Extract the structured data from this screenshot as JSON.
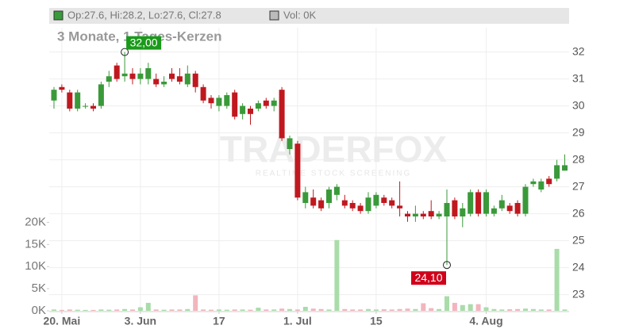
{
  "chart_data": {
    "type": "candlestick",
    "header": "Op:27.6, Hi:28.2, Lo:27.6, Cl:27.8",
    "volume_header": "Vol: 0K",
    "title": "3 Monate, 1 Tages-Kerzen",
    "watermark": "TRADERFOX",
    "watermark_sub": "REALTIME STOCK SCREENING",
    "categories": [
      null,
      "20. Mai",
      null,
      null,
      null,
      null,
      null,
      null,
      null,
      null,
      null,
      "3. Jun",
      null,
      null,
      null,
      null,
      null,
      null,
      null,
      null,
      null,
      "17",
      null,
      null,
      null,
      null,
      null,
      null,
      null,
      null,
      null,
      "1. Jul",
      null,
      null,
      null,
      null,
      null,
      null,
      null,
      null,
      null,
      "15",
      null,
      null,
      null,
      null,
      null,
      null,
      null,
      null,
      null,
      null,
      null,
      null,
      null,
      "4. Aug",
      null,
      null,
      null,
      null,
      null,
      null,
      null,
      null,
      null,
      null
    ],
    "open": [
      30.2,
      30.7,
      30.5,
      29.9,
      30.0,
      30.0,
      30.0,
      30.9,
      31.5,
      31.1,
      31.2,
      31.0,
      31.0,
      31.0,
      30.8,
      31.2,
      31.1,
      30.8,
      31.2,
      30.7,
      30.3,
      30.0,
      30.0,
      30.5,
      29.7,
      29.9,
      29.9,
      30.2,
      30.0,
      30.6,
      28.4,
      28.6,
      26.4,
      26.6,
      26.5,
      26.4,
      26.7,
      26.5,
      26.4,
      26.3,
      26.1,
      26.3,
      26.6,
      26.5,
      26.3,
      26.0,
      25.9,
      26.0,
      26.1,
      25.9,
      25.9,
      26.5,
      25.9,
      26.0,
      26.8,
      26.0,
      26.0,
      26.2,
      26.3,
      26.4,
      26.0,
      27.1,
      26.9,
      27.3,
      27.3,
      27.6
    ],
    "high": [
      30.7,
      30.8,
      30.6,
      30.6,
      30.1,
      30.1,
      30.9,
      31.3,
      31.6,
      32.0,
      31.4,
      31.4,
      31.6,
      31.2,
      31.1,
      31.4,
      31.4,
      31.5,
      31.3,
      30.8,
      30.4,
      30.4,
      30.5,
      30.6,
      30.1,
      30.0,
      30.2,
      30.3,
      30.3,
      30.7,
      28.9,
      28.7,
      27.0,
      26.9,
      26.6,
      27.0,
      27.1,
      26.7,
      26.5,
      26.4,
      26.8,
      26.8,
      26.7,
      26.6,
      27.2,
      26.1,
      26.3,
      26.1,
      26.5,
      26.1,
      26.9,
      26.6,
      26.4,
      26.9,
      26.9,
      26.9,
      26.3,
      26.7,
      26.4,
      26.5,
      27.1,
      27.3,
      27.3,
      27.4,
      28.0,
      28.2
    ],
    "low": [
      29.9,
      30.5,
      29.8,
      29.8,
      29.9,
      29.8,
      29.9,
      30.7,
      30.9,
      30.9,
      30.8,
      30.8,
      30.8,
      30.7,
      30.7,
      30.9,
      30.8,
      30.7,
      30.5,
      30.1,
      29.9,
      29.8,
      29.9,
      29.5,
      29.5,
      29.3,
      29.8,
      29.9,
      29.8,
      28.7,
      28.2,
      26.5,
      26.2,
      26.2,
      26.1,
      26.2,
      26.5,
      26.2,
      26.1,
      26.0,
      26.0,
      26.2,
      26.3,
      26.2,
      25.9,
      25.7,
      25.7,
      25.8,
      25.8,
      25.8,
      24.1,
      25.8,
      25.5,
      25.9,
      25.9,
      25.9,
      25.9,
      26.1,
      26.0,
      25.9,
      25.9,
      27.0,
      26.8,
      27.0,
      27.2,
      27.6
    ],
    "close": [
      30.6,
      30.6,
      29.9,
      30.5,
      30.0,
      29.9,
      30.8,
      31.1,
      31.0,
      31.2,
      31.0,
      31.2,
      31.4,
      30.8,
      30.9,
      31.0,
      30.9,
      31.2,
      30.7,
      30.2,
      30.1,
      30.3,
      30.4,
      29.6,
      30.0,
      29.7,
      30.1,
      30.0,
      30.2,
      28.8,
      28.8,
      26.6,
      26.8,
      26.3,
      26.2,
      26.9,
      27.0,
      26.3,
      26.2,
      26.1,
      26.6,
      26.7,
      26.4,
      26.3,
      26.2,
      25.9,
      26.0,
      25.9,
      25.9,
      26.0,
      26.4,
      25.9,
      26.2,
      26.8,
      26.0,
      26.8,
      26.2,
      26.5,
      26.1,
      26.0,
      27.0,
      27.2,
      27.2,
      27.1,
      27.8,
      27.8
    ],
    "volume": [
      300,
      200,
      300,
      250,
      200,
      200,
      300,
      250,
      300,
      400,
      300,
      800,
      1800,
      300,
      250,
      300,
      300,
      400,
      3500,
      300,
      250,
      300,
      250,
      300,
      300,
      250,
      700,
      300,
      300,
      500,
      400,
      300,
      900,
      500,
      400,
      300,
      16000,
      400,
      300,
      300,
      400,
      300,
      350,
      300,
      400,
      500,
      400,
      1700,
      600,
      400,
      3300,
      1800,
      1300,
      1500,
      1500,
      800,
      400,
      300,
      350,
      400,
      500,
      400,
      300,
      300,
      14000,
      300
    ],
    "up_color": "#3a9a3a",
    "down_color": "#c0181f",
    "up_volume_color": "#a9dca9",
    "down_volume_color": "#f2b5be",
    "ylim": [
      22.4,
      32.9
    ],
    "yticks": [
      23,
      24,
      25,
      26,
      27,
      28,
      29,
      30,
      31,
      32
    ],
    "y2lim": [
      0,
      64000
    ],
    "y2ticks": [
      {
        "value": 0,
        "label": "0K"
      },
      {
        "value": 5000,
        "label": "5K"
      },
      {
        "value": 10000,
        "label": "10K"
      },
      {
        "value": 15000,
        "label": "15K"
      },
      {
        "value": 20000,
        "label": "20K"
      }
    ],
    "grid": true,
    "annotations": [
      {
        "value": 32,
        "label": "32,00",
        "kind": "max"
      },
      {
        "value": 24.1,
        "label": "24,10",
        "kind": "min"
      }
    ]
  }
}
